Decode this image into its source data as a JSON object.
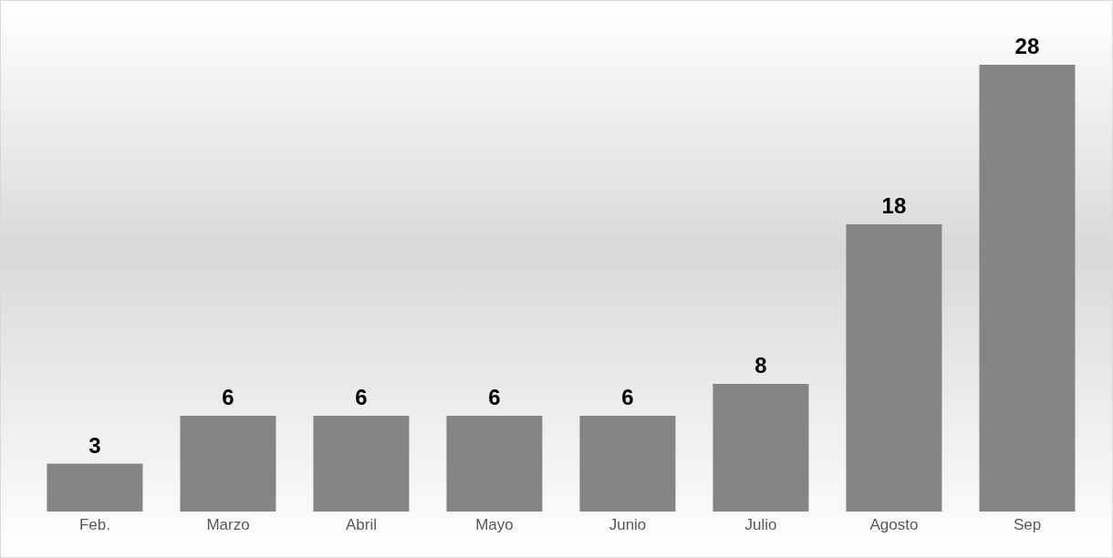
{
  "chart_data": {
    "type": "bar",
    "categories": [
      "Feb.",
      "Marzo",
      "Abril",
      "Mayo",
      "Junio",
      "Julio",
      "Agosto",
      "Sep"
    ],
    "values": [
      3,
      6,
      6,
      6,
      6,
      8,
      18,
      28
    ],
    "color": "#858585",
    "data_labels": true
  }
}
